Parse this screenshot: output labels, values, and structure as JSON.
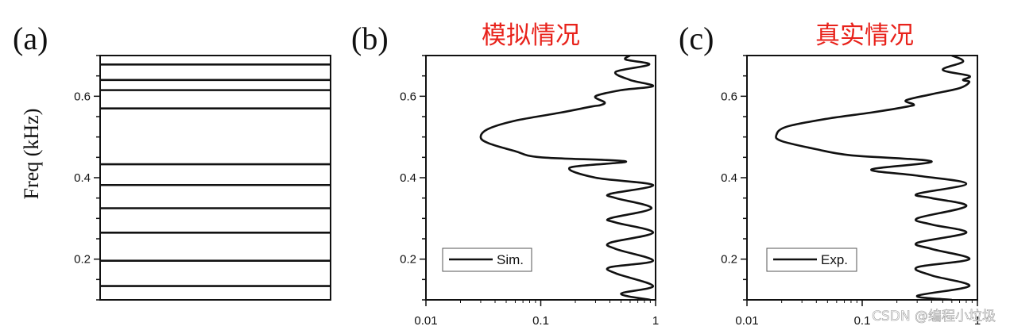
{
  "panels": [
    {
      "label": "(a)",
      "title": "",
      "chart_data": {
        "type": "line",
        "description_kind": "eigenfrequency levels",
        "ylabel": "Freq (kHz)",
        "ylim": [
          0.1,
          0.7
        ],
        "yticks": [
          0.2,
          0.4,
          0.6
        ],
        "levels": [
          0.134,
          0.196,
          0.265,
          0.325,
          0.382,
          0.433,
          0.57,
          0.615,
          0.64,
          0.678
        ]
      }
    },
    {
      "label": "(b)",
      "title": "模拟情况",
      "legend": "Sim.",
      "chart_data": {
        "type": "line",
        "xscale": "log",
        "xlim": [
          0.01,
          1
        ],
        "ylim": [
          0.1,
          0.7
        ],
        "xticks": [
          "0.01",
          "0.1",
          "1"
        ],
        "yticks": [
          0.2,
          0.4,
          0.6
        ],
        "series": [
          {
            "name": "Sim.",
            "points": [
              [
                0.9,
                0.1
              ],
              [
                0.5,
                0.115
              ],
              [
                0.95,
                0.134
              ],
              [
                0.45,
                0.165
              ],
              [
                0.4,
                0.18
              ],
              [
                0.95,
                0.196
              ],
              [
                0.45,
                0.225
              ],
              [
                0.4,
                0.24
              ],
              [
                0.95,
                0.265
              ],
              [
                0.45,
                0.29
              ],
              [
                0.4,
                0.3
              ],
              [
                0.92,
                0.325
              ],
              [
                0.45,
                0.35
              ],
              [
                0.4,
                0.36
              ],
              [
                0.95,
                0.382
              ],
              [
                0.3,
                0.4
              ],
              [
                0.18,
                0.425
              ],
              [
                0.55,
                0.44
              ],
              [
                0.1,
                0.45
              ],
              [
                0.06,
                0.465
              ],
              [
                0.035,
                0.485
              ],
              [
                0.03,
                0.5
              ],
              [
                0.035,
                0.52
              ],
              [
                0.06,
                0.54
              ],
              [
                0.15,
                0.56
              ],
              [
                0.28,
                0.575
              ],
              [
                0.33,
                0.578
              ],
              [
                0.36,
                0.585
              ],
              [
                0.3,
                0.6
              ],
              [
                0.5,
                0.615
              ],
              [
                0.95,
                0.625
              ],
              [
                0.6,
                0.64
              ],
              [
                0.45,
                0.66
              ],
              [
                0.88,
                0.678
              ],
              [
                0.55,
                0.69
              ],
              [
                0.6,
                0.7
              ]
            ]
          }
        ]
      }
    },
    {
      "label": "(c)",
      "title": "真实情况",
      "legend": "Exp.",
      "chart_data": {
        "type": "line",
        "xscale": "log",
        "xlim": [
          0.01,
          1
        ],
        "ylim": [
          0.1,
          0.7
        ],
        "xticks": [
          "0.01",
          "0.1",
          "1"
        ],
        "yticks": [
          0.2,
          0.4,
          0.6
        ],
        "series": [
          {
            "name": "Exp.",
            "points": [
              [
                0.6,
                0.1
              ],
              [
                0.3,
                0.11
              ],
              [
                0.85,
                0.134
              ],
              [
                0.4,
                0.16
              ],
              [
                0.3,
                0.18
              ],
              [
                0.85,
                0.2
              ],
              [
                0.4,
                0.225
              ],
              [
                0.3,
                0.24
              ],
              [
                0.8,
                0.265
              ],
              [
                0.4,
                0.285
              ],
              [
                0.3,
                0.3
              ],
              [
                0.8,
                0.33
              ],
              [
                0.4,
                0.35
              ],
              [
                0.3,
                0.36
              ],
              [
                0.8,
                0.385
              ],
              [
                0.3,
                0.405
              ],
              [
                0.12,
                0.42
              ],
              [
                0.4,
                0.44
              ],
              [
                0.08,
                0.455
              ],
              [
                0.04,
                0.47
              ],
              [
                0.02,
                0.49
              ],
              [
                0.018,
                0.505
              ],
              [
                0.022,
                0.525
              ],
              [
                0.05,
                0.545
              ],
              [
                0.12,
                0.56
              ],
              [
                0.25,
                0.575
              ],
              [
                0.28,
                0.58
              ],
              [
                0.24,
                0.59
              ],
              [
                0.4,
                0.605
              ],
              [
                0.7,
                0.62
              ],
              [
                0.85,
                0.635
              ],
              [
                0.75,
                0.64
              ],
              [
                0.85,
                0.65
              ],
              [
                0.5,
                0.665
              ],
              [
                0.75,
                0.685
              ],
              [
                0.6,
                0.7
              ]
            ]
          }
        ]
      }
    }
  ],
  "watermark": "CSDN @编程小垃圾"
}
